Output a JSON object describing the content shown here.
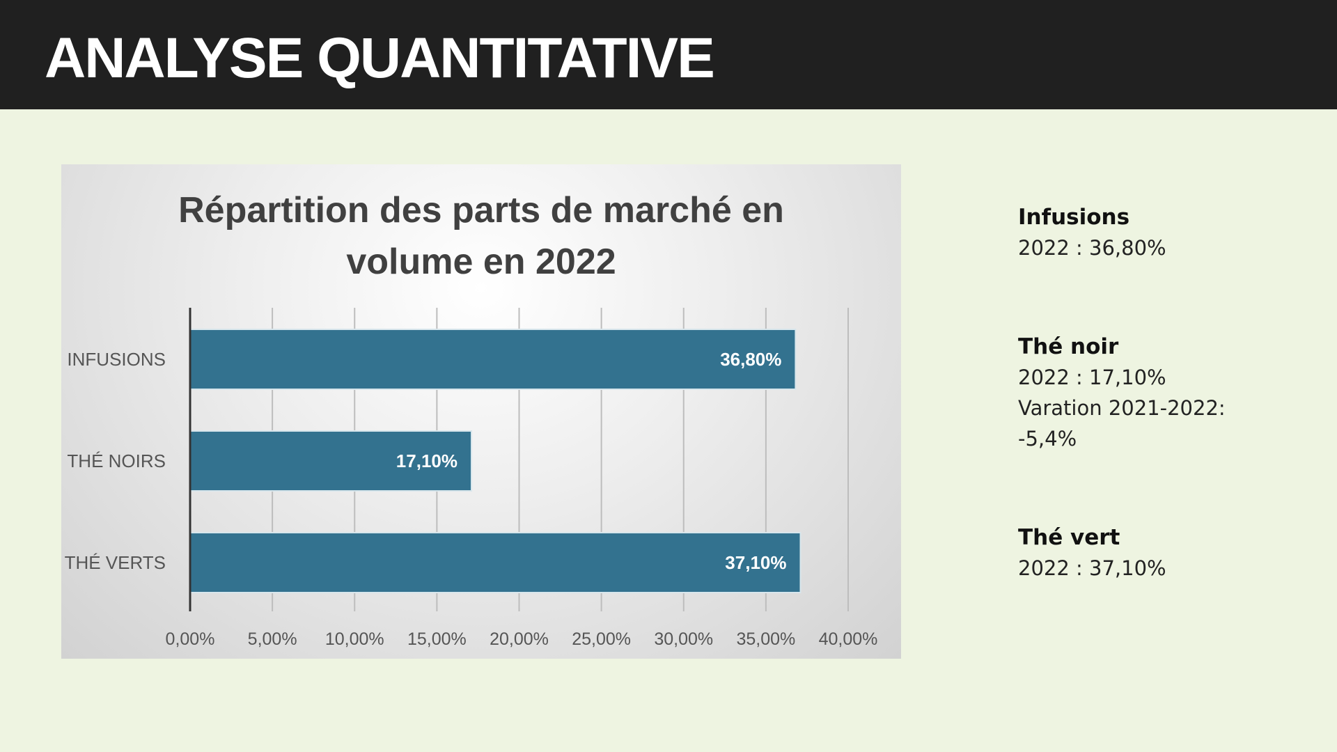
{
  "header": {
    "title": "ANALYSE QUANTITATIVE"
  },
  "chart_data": {
    "type": "bar",
    "orientation": "horizontal",
    "title_lines": [
      "Répartition des parts de marché en",
      "volume en 2022"
    ],
    "categories": [
      "INFUSIONS",
      "THÉ NOIRS",
      "THÉ VERTS"
    ],
    "values": [
      36.8,
      17.1,
      37.1
    ],
    "data_labels": [
      "36,80%",
      "17,10%",
      "37,10%"
    ],
    "x_ticks": [
      "0,00%",
      "5,00%",
      "10,00%",
      "15,00%",
      "20,00%",
      "25,00%",
      "30,00%",
      "35,00%",
      "40,00%"
    ],
    "xlim": [
      0,
      40
    ],
    "grid": true,
    "bar_color": "#33728f",
    "xlabel": "",
    "ylabel": ""
  },
  "side_notes": [
    {
      "name": "Infusions",
      "lines": [
        "2022 : 36,80%"
      ]
    },
    {
      "name": "Thé noir",
      "lines": [
        "2022 : 17,10%",
        "Varation 2021-2022:",
        "-5,4%"
      ]
    },
    {
      "name": "Thé vert",
      "lines": [
        "2022 : 37,10%"
      ]
    }
  ]
}
